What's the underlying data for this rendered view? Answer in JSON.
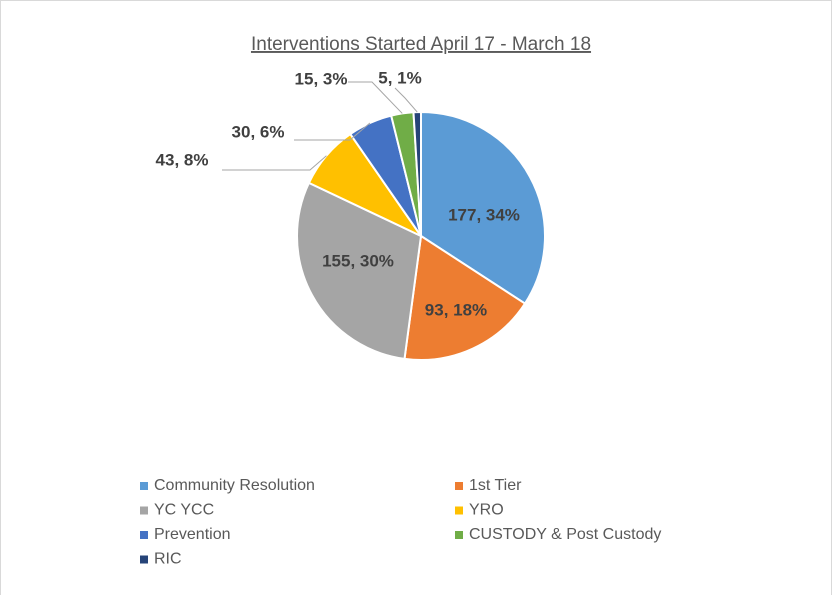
{
  "chart_data": {
    "type": "pie",
    "title": "Interventions Started April 17 - March 18",
    "categories": [
      "Community Resolution",
      "1st Tier",
      "YC YCC",
      "YRO",
      "Prevention",
      "CUSTODY & Post Custody",
      "RIC"
    ],
    "values": [
      177,
      93,
      155,
      43,
      30,
      15,
      5
    ],
    "value_labels": [
      "177, 34%",
      "93, 18%",
      "155, 30%",
      "43, 8%",
      "30, 6%",
      "15, 3%",
      "5, 1%"
    ],
    "colors": [
      "#5b9bd5",
      "#ed7d31",
      "#a5a5a5",
      "#ffc000",
      "#4472c4",
      "#70ad47",
      "#264478"
    ],
    "legend": "bottom"
  }
}
